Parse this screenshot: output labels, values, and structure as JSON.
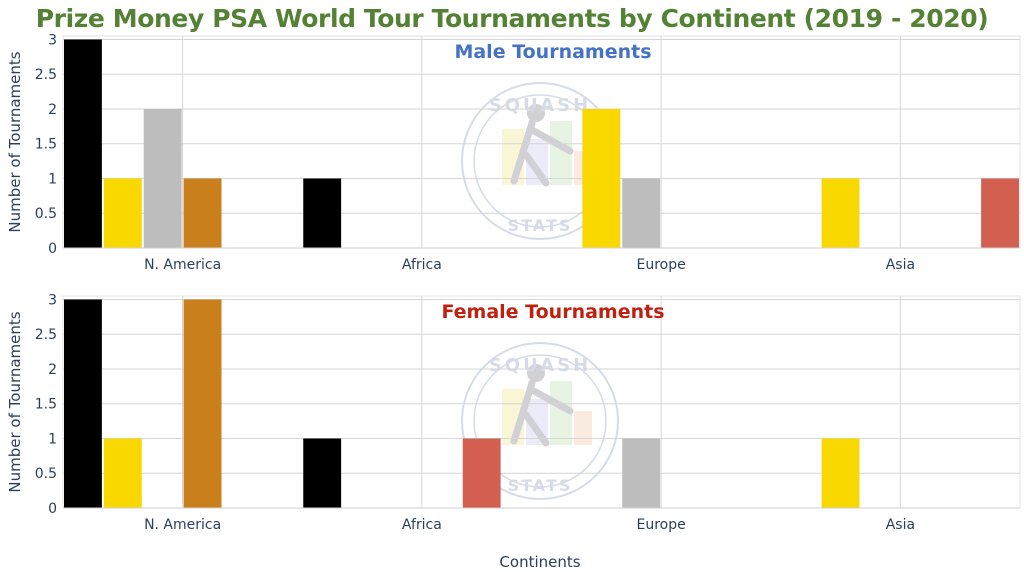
{
  "title": "Prize Money PSA World Tour Tournaments by Continent (2019 - 2020)",
  "title_color": "#548235",
  "watermark": {
    "top_text": "SQUASH",
    "bottom_text": "STATS"
  },
  "chart_data": [
    {
      "type": "bar",
      "title": "Male Tournaments",
      "title_color": "#4472c4",
      "categories": [
        "N. America",
        "Africa",
        "Europe",
        "Asia"
      ],
      "ylabel": "Number of Tournaments",
      "xlabel": "",
      "ylim": [
        0,
        3.05
      ],
      "yticks": [
        "0",
        "0.5",
        "1",
        "1.5",
        "2",
        "2.5",
        "3"
      ],
      "grid": true,
      "legend": "none",
      "series_colors": [
        "#000000",
        "#f9d800",
        "#bdbdbd",
        "#c9801c",
        "#e8e8e8",
        "#d35f50"
      ],
      "series": [
        {
          "values": [
            3,
            1,
            0,
            0
          ]
        },
        {
          "values": [
            1,
            0,
            2,
            1
          ]
        },
        {
          "values": [
            2,
            0,
            1,
            0
          ]
        },
        {
          "values": [
            1,
            0,
            0,
            0
          ]
        },
        {
          "values": [
            0,
            0,
            0,
            0
          ]
        },
        {
          "values": [
            0,
            0,
            0,
            1
          ]
        }
      ]
    },
    {
      "type": "bar",
      "title": "Female Tournaments",
      "title_color": "#c0210f",
      "categories": [
        "N. America",
        "Africa",
        "Europe",
        "Asia"
      ],
      "ylabel": "Number of Tournaments",
      "xlabel": "Continents",
      "ylim": [
        0,
        3.05
      ],
      "yticks": [
        "0",
        "0.5",
        "1",
        "1.5",
        "2",
        "2.5",
        "3"
      ],
      "grid": true,
      "legend": "none",
      "series_colors": [
        "#000000",
        "#f9d800",
        "#bdbdbd",
        "#c9801c",
        "#d35f50",
        "#e8e8e8"
      ],
      "series": [
        {
          "values": [
            3,
            1,
            0,
            0
          ]
        },
        {
          "values": [
            1,
            0,
            0,
            1
          ]
        },
        {
          "values": [
            0,
            0,
            1,
            0
          ]
        },
        {
          "values": [
            3,
            0,
            0,
            0
          ]
        },
        {
          "values": [
            0,
            1,
            0,
            0
          ]
        },
        {
          "values": [
            0,
            0,
            0,
            0
          ]
        }
      ]
    }
  ]
}
